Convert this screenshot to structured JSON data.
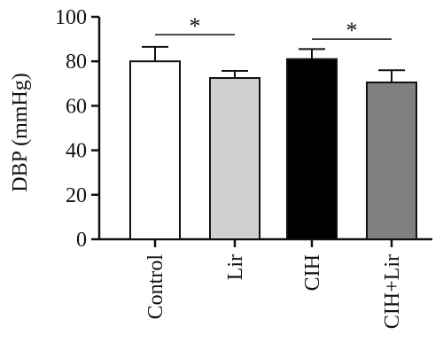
{
  "chart_data": {
    "type": "bar",
    "title": "",
    "xlabel": "",
    "ylabel": "DBP (mmHg)",
    "ylim": [
      0,
      100
    ],
    "yticks": [
      0,
      20,
      40,
      60,
      80,
      100
    ],
    "grid": false,
    "legend": "none",
    "categories": [
      "Control",
      "Lir",
      "CIH",
      "CIH+Lir"
    ],
    "values": [
      80,
      72.5,
      81,
      70.5
    ],
    "errors": [
      6.5,
      3.2,
      4.5,
      5.5
    ],
    "colors": [
      "#ffffff",
      "#d0d0d0",
      "#000000",
      "#808080"
    ],
    "significance": [
      {
        "from": 0,
        "to": 1,
        "label": "*",
        "y": 92
      },
      {
        "from": 2,
        "to": 3,
        "label": "*",
        "y": 90
      }
    ]
  }
}
